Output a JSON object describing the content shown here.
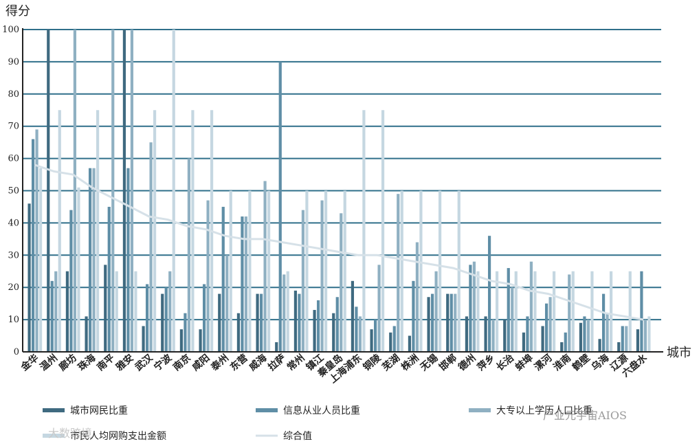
{
  "chart_data": {
    "type": "bar",
    "ylabel": "得分",
    "xlabel": "城市",
    "ylim": [
      0,
      100
    ],
    "yticks": [
      0,
      10,
      20,
      30,
      40,
      50,
      60,
      70,
      80,
      90,
      100
    ],
    "grid": true,
    "legend_position": "bottom",
    "categories": [
      "金华",
      "温州",
      "廊坊",
      "珠海",
      "南平",
      "雅安",
      "武汉",
      "宁波",
      "南京",
      "咸阳",
      "泰州",
      "东营",
      "威海",
      "拉萨",
      "常州",
      "镇江",
      "秦皇岛",
      "上海浦东",
      "铜陵",
      "芜湖",
      "株洲",
      "无锡",
      "邯郸",
      "德州",
      "萍乡",
      "长治",
      "蚌埠",
      "漯河",
      "淮南",
      "鹤壁",
      "乌海",
      "辽源",
      "六盘水"
    ],
    "series": [
      {
        "name": "城市网民比重",
        "color": "#3f6a80",
        "values": [
          46,
          100,
          25,
          11,
          27,
          100,
          8,
          18,
          7,
          7,
          18,
          12,
          18,
          3,
          19,
          13,
          12,
          22,
          7,
          6,
          5,
          17,
          18,
          11,
          11,
          10,
          6,
          8,
          3,
          9,
          4,
          3,
          7
        ]
      },
      {
        "name": "信息从业人员比重",
        "color": "#5f8ea6",
        "values": [
          66,
          22,
          44,
          57,
          45,
          57,
          21,
          20,
          12,
          21,
          45,
          42,
          18,
          90,
          18,
          16,
          17,
          14,
          10,
          8,
          22,
          18,
          18,
          27,
          36,
          26,
          11,
          15,
          6,
          11,
          18,
          8,
          25
        ]
      },
      {
        "name": "大专以上学历人口比重",
        "color": "#8fb0c2",
        "values": [
          69,
          25,
          100,
          57,
          100,
          100,
          65,
          25,
          60,
          47,
          30,
          42,
          53,
          24,
          44,
          47,
          43,
          11,
          27,
          49,
          34,
          25,
          18,
          28,
          10,
          20,
          28,
          17,
          24,
          10,
          12,
          8,
          10
        ]
      },
      {
        "name": "市民人均网购支出金额",
        "color": "#c5d7e1",
        "values": [
          57,
          75,
          51,
          75,
          25,
          25,
          75,
          100,
          75,
          75,
          50,
          50,
          50,
          25,
          50,
          50,
          50,
          75,
          75,
          50,
          50,
          50,
          50,
          25,
          25,
          25,
          25,
          25,
          25,
          25,
          25,
          25,
          11
        ]
      },
      {
        "name": "综合值",
        "color": "#d6e1e8",
        "type": "line",
        "values": [
          58,
          56,
          55,
          51,
          48,
          45,
          42,
          41,
          39,
          38,
          36,
          35,
          35,
          34,
          33,
          32,
          31,
          30,
          30,
          29,
          28,
          27,
          26,
          24,
          22,
          21,
          19,
          18,
          16,
          14,
          12,
          11,
          10
        ]
      }
    ]
  },
  "watermarks": [
    "大数跨境",
    "产业元宇宙AIOS"
  ]
}
